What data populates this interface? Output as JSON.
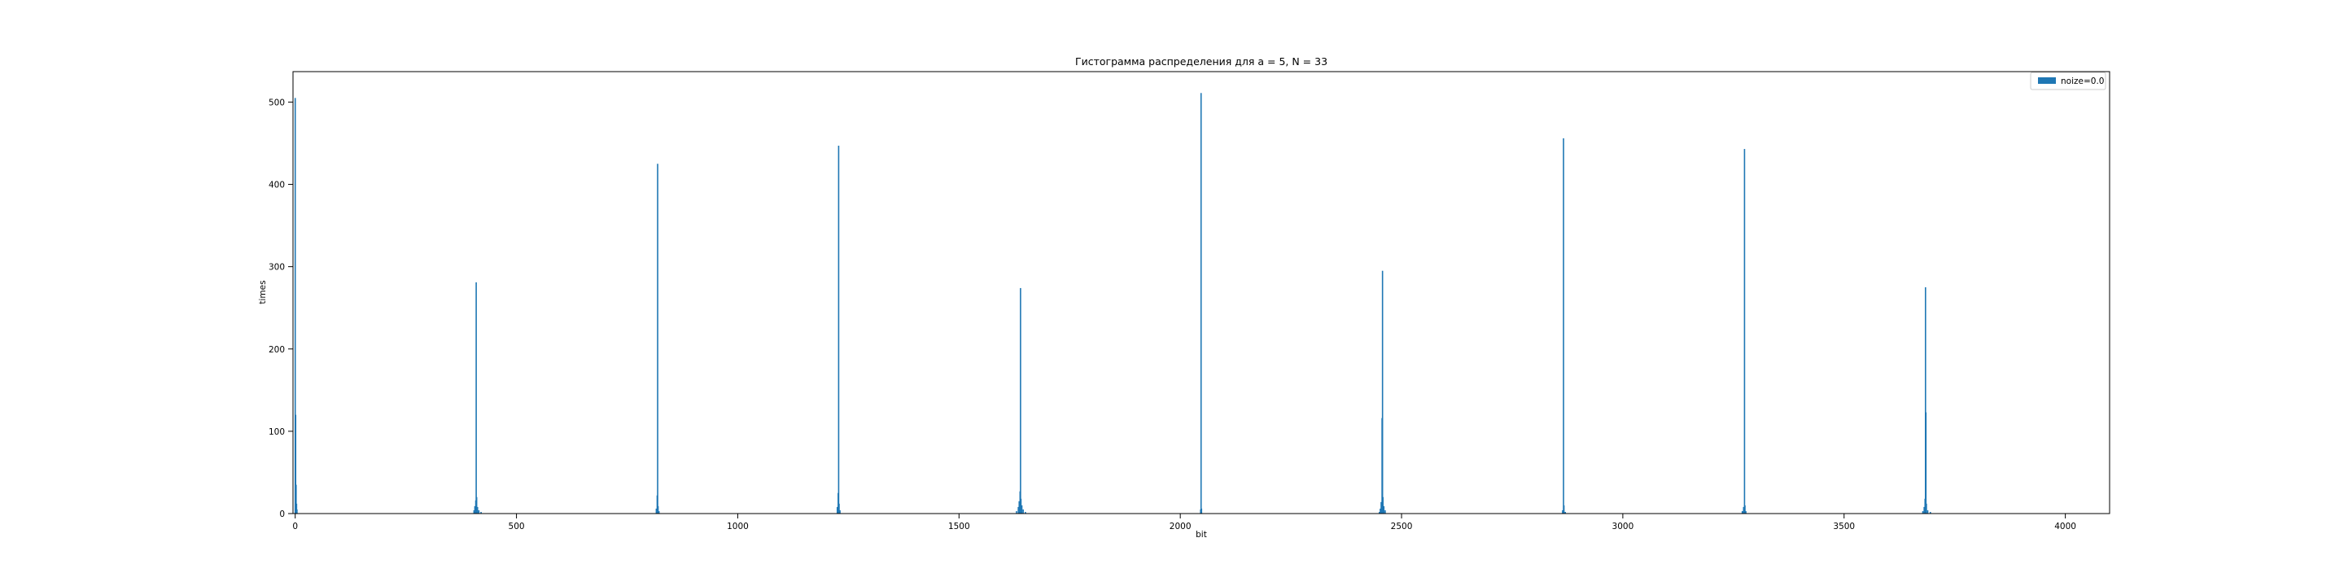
{
  "chart_data": {
    "type": "bar",
    "title": "Гистограмма распределения для a = 5, N = 33",
    "xlabel": "bit",
    "ylabel": "times",
    "xlim": [
      -5,
      4100
    ],
    "ylim": [
      0,
      537
    ],
    "xticks": [
      0,
      500,
      1000,
      1500,
      2000,
      2500,
      3000,
      3500,
      4000
    ],
    "yticks": [
      0,
      100,
      200,
      300,
      400,
      500
    ],
    "grid": false,
    "legend_position": "top-right",
    "series": [
      {
        "name": "noize=0.0",
        "color": "#1f77b4",
        "points": [
          {
            "x": 0,
            "y": 505
          },
          {
            "x": 1,
            "y": 120
          },
          {
            "x": 2,
            "y": 35
          },
          {
            "x": 3,
            "y": 12
          },
          {
            "x": 4,
            "y": 5
          },
          {
            "x": 404,
            "y": 4
          },
          {
            "x": 406,
            "y": 9
          },
          {
            "x": 408,
            "y": 16
          },
          {
            "x": 409,
            "y": 281
          },
          {
            "x": 410,
            "y": 20
          },
          {
            "x": 412,
            "y": 8
          },
          {
            "x": 415,
            "y": 4
          },
          {
            "x": 420,
            "y": 2
          },
          {
            "x": 816,
            "y": 6
          },
          {
            "x": 818,
            "y": 22
          },
          {
            "x": 819,
            "y": 425
          },
          {
            "x": 820,
            "y": 9
          },
          {
            "x": 822,
            "y": 3
          },
          {
            "x": 1225,
            "y": 8
          },
          {
            "x": 1227,
            "y": 25
          },
          {
            "x": 1228,
            "y": 447
          },
          {
            "x": 1229,
            "y": 12
          },
          {
            "x": 1231,
            "y": 4
          },
          {
            "x": 1630,
            "y": 3
          },
          {
            "x": 1634,
            "y": 8
          },
          {
            "x": 1636,
            "y": 15
          },
          {
            "x": 1638,
            "y": 27
          },
          {
            "x": 1639,
            "y": 274
          },
          {
            "x": 1640,
            "y": 18
          },
          {
            "x": 1642,
            "y": 10
          },
          {
            "x": 1645,
            "y": 5
          },
          {
            "x": 1650,
            "y": 2
          },
          {
            "x": 2046,
            "y": 5
          },
          {
            "x": 2047,
            "y": 511
          },
          {
            "x": 2048,
            "y": 6
          },
          {
            "x": 2450,
            "y": 2
          },
          {
            "x": 2452,
            "y": 6
          },
          {
            "x": 2454,
            "y": 14
          },
          {
            "x": 2456,
            "y": 116
          },
          {
            "x": 2457,
            "y": 295
          },
          {
            "x": 2458,
            "y": 20
          },
          {
            "x": 2460,
            "y": 9
          },
          {
            "x": 2463,
            "y": 4
          },
          {
            "x": 2864,
            "y": 4
          },
          {
            "x": 2866,
            "y": 456
          },
          {
            "x": 2867,
            "y": 10
          },
          {
            "x": 2870,
            "y": 2
          },
          {
            "x": 3270,
            "y": 3
          },
          {
            "x": 3273,
            "y": 8
          },
          {
            "x": 3275,
            "y": 443
          },
          {
            "x": 3276,
            "y": 10
          },
          {
            "x": 3278,
            "y": 3
          },
          {
            "x": 3678,
            "y": 3
          },
          {
            "x": 3681,
            "y": 8
          },
          {
            "x": 3683,
            "y": 18
          },
          {
            "x": 3684,
            "y": 275
          },
          {
            "x": 3685,
            "y": 123
          },
          {
            "x": 3686,
            "y": 12
          },
          {
            "x": 3689,
            "y": 4
          },
          {
            "x": 3695,
            "y": 2
          }
        ]
      }
    ]
  }
}
